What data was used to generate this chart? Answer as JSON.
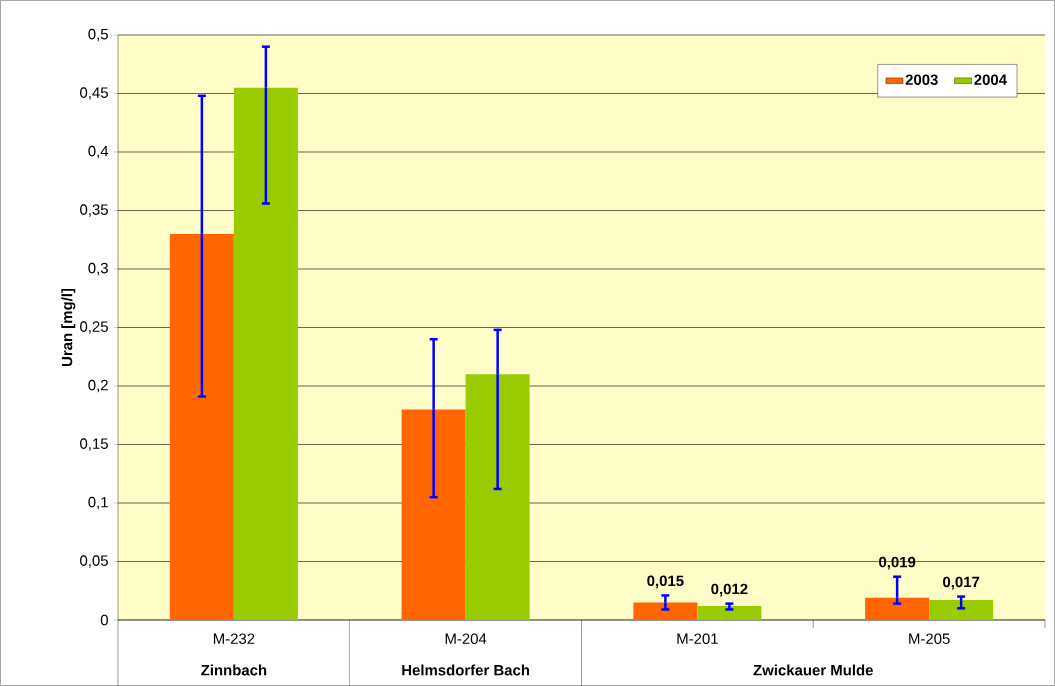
{
  "chart_data": {
    "type": "bar",
    "ylabel": "Uran [mg/l]",
    "categories": [
      "M-232",
      "M-204",
      "M-201",
      "M-205"
    ],
    "series": [
      {
        "name": "2003",
        "color": "#ff6600",
        "values": [
          0.33,
          0.18,
          0.015,
          0.019
        ],
        "errors": [
          [
            0.191,
            0.448
          ],
          [
            0.105,
            0.24
          ],
          [
            0.009,
            0.021
          ],
          [
            0.014,
            0.037
          ]
        ],
        "value_labels": [
          null,
          null,
          "0,015",
          "0,019"
        ]
      },
      {
        "name": "2004",
        "color": "#99cc00",
        "values": [
          0.455,
          0.21,
          0.012,
          0.017
        ],
        "errors": [
          [
            0.356,
            0.49
          ],
          [
            0.112,
            0.248
          ],
          [
            0.009,
            0.014
          ],
          [
            0.01,
            0.02
          ]
        ],
        "value_labels": [
          null,
          null,
          "0,012",
          "0,017"
        ]
      }
    ],
    "annotations": [
      "Zinnbach",
      "Helmsdorfer Bach",
      "Zwickauer Mulde"
    ],
    "ylim": [
      0,
      0.5
    ],
    "yticks": [
      0,
      {
        "value": 0.05,
        "label": "0,05"
      },
      {
        "value": 0.1,
        "label": "0,1"
      },
      {
        "value": 0.15,
        "label": "0,15"
      },
      {
        "value": 0.2,
        "label": "0,2"
      },
      {
        "value": 0.25,
        "label": "0,25"
      },
      {
        "value": 0.3,
        "label": "0,3"
      },
      {
        "value": 0.35,
        "label": "0,35"
      },
      {
        "value": 0.4,
        "label": "0,4"
      },
      {
        "value": 0.45,
        "label": "0,45"
      },
      {
        "value": 0.5,
        "label": "0,5"
      }
    ],
    "grid": "y",
    "legend": "top right"
  }
}
